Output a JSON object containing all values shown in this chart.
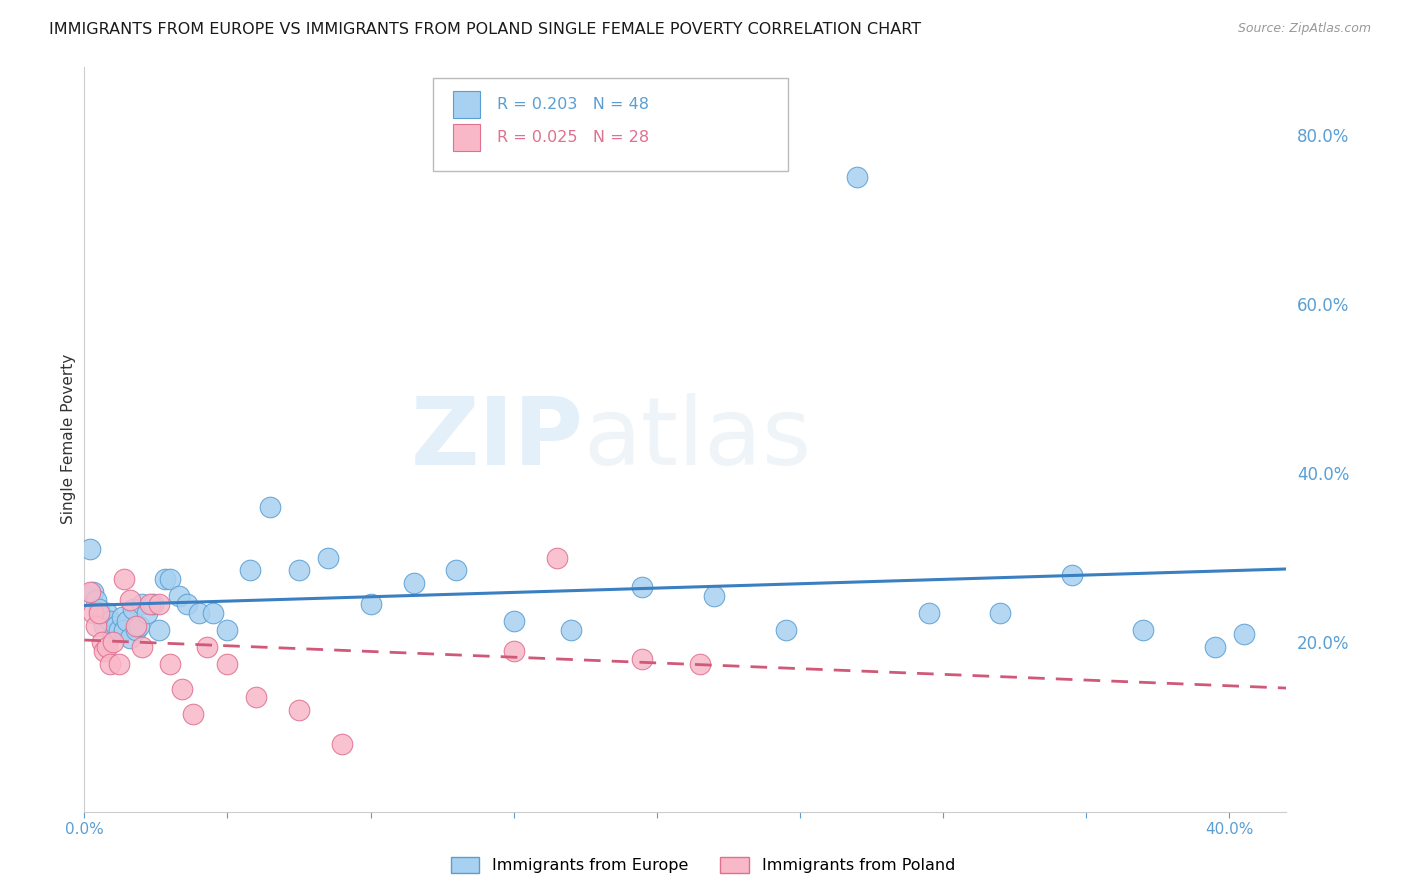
{
  "title": "IMMIGRANTS FROM EUROPE VS IMMIGRANTS FROM POLAND SINGLE FEMALE POVERTY CORRELATION CHART",
  "source": "Source: ZipAtlas.com",
  "ylabel": "Single Female Poverty",
  "xlim": [
    0.0,
    0.42
  ],
  "ylim": [
    0.0,
    0.88
  ],
  "yticks_right": [
    0.2,
    0.4,
    0.6,
    0.8
  ],
  "ytick_labels_right": [
    "20.0%",
    "40.0%",
    "60.0%",
    "80.0%"
  ],
  "watermark_zip": "ZIP",
  "watermark_atlas": "atlas",
  "series_blue": {
    "label": "Immigrants from Europe",
    "R": 0.203,
    "N": 48,
    "color": "#a8d0f0",
    "edge_color": "#5a9fd4",
    "line_color": "#3a7fc1",
    "x": [
      0.002,
      0.003,
      0.004,
      0.005,
      0.006,
      0.007,
      0.008,
      0.009,
      0.01,
      0.011,
      0.012,
      0.013,
      0.014,
      0.015,
      0.016,
      0.017,
      0.018,
      0.019,
      0.02,
      0.022,
      0.024,
      0.026,
      0.028,
      0.03,
      0.033,
      0.036,
      0.04,
      0.045,
      0.05,
      0.058,
      0.065,
      0.075,
      0.085,
      0.1,
      0.115,
      0.13,
      0.15,
      0.17,
      0.195,
      0.22,
      0.245,
      0.27,
      0.295,
      0.32,
      0.345,
      0.37,
      0.395,
      0.405
    ],
    "y": [
      0.31,
      0.26,
      0.25,
      0.24,
      0.23,
      0.22,
      0.235,
      0.225,
      0.21,
      0.22,
      0.215,
      0.23,
      0.215,
      0.225,
      0.205,
      0.24,
      0.215,
      0.22,
      0.245,
      0.235,
      0.245,
      0.215,
      0.275,
      0.275,
      0.255,
      0.245,
      0.235,
      0.235,
      0.215,
      0.285,
      0.36,
      0.285,
      0.3,
      0.245,
      0.27,
      0.285,
      0.225,
      0.215,
      0.265,
      0.255,
      0.215,
      0.75,
      0.235,
      0.235,
      0.28,
      0.215,
      0.195,
      0.21
    ]
  },
  "series_pink": {
    "label": "Immigrants from Poland",
    "R": 0.025,
    "N": 28,
    "color": "#f9b8c8",
    "edge_color": "#e07090",
    "line_color": "#d05878",
    "x": [
      0.002,
      0.003,
      0.004,
      0.005,
      0.006,
      0.007,
      0.008,
      0.009,
      0.01,
      0.012,
      0.014,
      0.016,
      0.018,
      0.02,
      0.023,
      0.026,
      0.03,
      0.034,
      0.038,
      0.043,
      0.05,
      0.06,
      0.075,
      0.09,
      0.15,
      0.165,
      0.195,
      0.215
    ],
    "y": [
      0.26,
      0.235,
      0.22,
      0.235,
      0.2,
      0.19,
      0.195,
      0.175,
      0.2,
      0.175,
      0.275,
      0.25,
      0.22,
      0.195,
      0.245,
      0.245,
      0.175,
      0.145,
      0.115,
      0.195,
      0.175,
      0.135,
      0.12,
      0.08,
      0.19,
      0.3,
      0.18,
      0.175
    ]
  },
  "background_color": "#ffffff",
  "grid_color": "#d0d0d0",
  "axis_color": "#5a9fd4",
  "title_fontsize": 11.5,
  "source_fontsize": 9
}
